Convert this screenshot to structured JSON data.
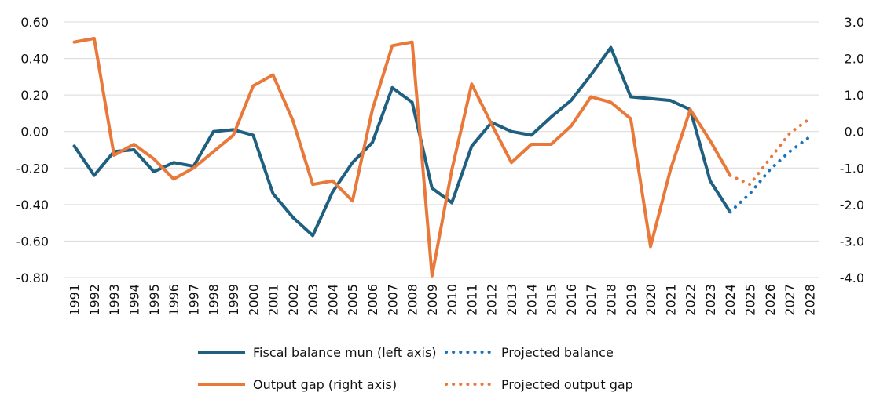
{
  "chart_data": {
    "type": "line",
    "title": "",
    "x": [
      "1991",
      "1992",
      "1993",
      "1994",
      "1995",
      "1996",
      "1997",
      "1998",
      "1999",
      "2000",
      "2001",
      "2002",
      "2003",
      "2004",
      "2005",
      "2006",
      "2007",
      "2008",
      "2009",
      "2010",
      "2011",
      "2012",
      "2013",
      "2014",
      "2015",
      "2016",
      "2017",
      "2018",
      "2019",
      "2020",
      "2021",
      "2022",
      "2023",
      "2024",
      "2025",
      "2026",
      "2027",
      "2028"
    ],
    "y_left": {
      "range": [
        -0.8,
        0.6
      ],
      "ticks": [
        "-0.80",
        "-0.60",
        "-0.40",
        "-0.20",
        "0.00",
        "0.20",
        "0.40",
        "0.60"
      ],
      "label": ""
    },
    "y_right": {
      "range": [
        -4.0,
        3.0
      ],
      "ticks": [
        "-4.0",
        "-3.0",
        "-2.0",
        "-1.0",
        "0.0",
        "1.0",
        "2.0",
        "3.0"
      ],
      "label": ""
    },
    "grid": true,
    "series": [
      {
        "name": "Fiscal balance mun (left axis)",
        "axis": "left",
        "style": "solid",
        "color": "#1f5f7f",
        "x": [
          "1991",
          "1992",
          "1993",
          "1994",
          "1995",
          "1996",
          "1997",
          "1998",
          "1999",
          "2000",
          "2001",
          "2002",
          "2003",
          "2004",
          "2005",
          "2006",
          "2007",
          "2008",
          "2009",
          "2010",
          "2011",
          "2012",
          "2013",
          "2014",
          "2015",
          "2016",
          "2017",
          "2018",
          "2019",
          "2020",
          "2021",
          "2022",
          "2023",
          "2024"
        ],
        "values": [
          -0.08,
          -0.24,
          -0.11,
          -0.1,
          -0.22,
          -0.17,
          -0.19,
          0.0,
          0.01,
          -0.02,
          -0.34,
          -0.47,
          -0.57,
          -0.33,
          -0.17,
          -0.06,
          0.24,
          0.16,
          -0.31,
          -0.39,
          -0.08,
          0.05,
          0.0,
          -0.02,
          0.08,
          0.17,
          0.31,
          0.46,
          0.19,
          0.18,
          0.17,
          0.12,
          -0.27,
          -0.44
        ]
      },
      {
        "name": "Projected balance",
        "axis": "left",
        "style": "dotted",
        "color": "#1a72b8",
        "x": [
          "2024",
          "2025",
          "2026",
          "2027",
          "2028"
        ],
        "values": [
          -0.44,
          -0.34,
          -0.21,
          -0.11,
          -0.03
        ]
      },
      {
        "name": "Output gap (right axis)",
        "axis": "right",
        "style": "solid",
        "color": "#e8793a",
        "x": [
          "1991",
          "1992",
          "1993",
          "1994",
          "1995",
          "1996",
          "1997",
          "1998",
          "1999",
          "2000",
          "2001",
          "2002",
          "2003",
          "2004",
          "2005",
          "2006",
          "2007",
          "2008",
          "2009",
          "2010",
          "2011",
          "2012",
          "2013",
          "2014",
          "2015",
          "2016",
          "2017",
          "2018",
          "2019",
          "2020",
          "2021",
          "2022",
          "2023",
          "2024"
        ],
        "values": [
          2.45,
          2.55,
          -0.65,
          -0.35,
          -0.75,
          -1.3,
          -1.0,
          -0.55,
          -0.1,
          1.25,
          1.55,
          0.3,
          -1.45,
          -1.35,
          -1.9,
          0.6,
          2.35,
          2.45,
          -3.95,
          -1.05,
          1.3,
          0.2,
          -0.85,
          -0.35,
          -0.35,
          0.15,
          0.95,
          0.8,
          0.35,
          -3.15,
          -1.05,
          0.6,
          -0.25,
          -1.2
        ]
      },
      {
        "name": "Projected output gap",
        "axis": "right",
        "style": "dotted",
        "color": "#e8793a",
        "x": [
          "2024",
          "2025",
          "2026",
          "2027",
          "2028"
        ],
        "values": [
          -1.2,
          -1.45,
          -0.75,
          -0.05,
          0.35
        ]
      }
    ],
    "legend": {
      "placement": "bottom",
      "entries": [
        {
          "label": "Fiscal balance mun (left axis)",
          "style": "solid",
          "color": "#1f5f7f"
        },
        {
          "label": "Projected balance",
          "style": "dotted",
          "color": "#1a72b8"
        },
        {
          "label": "Output gap (right axis)",
          "style": "solid",
          "color": "#e8793a"
        },
        {
          "label": "Projected output gap",
          "style": "dotted",
          "color": "#e8793a"
        }
      ]
    }
  }
}
